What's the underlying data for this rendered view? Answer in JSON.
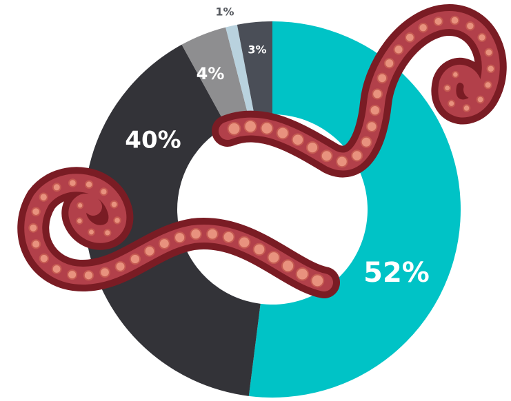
{
  "chart_data": {
    "type": "donut",
    "values": [
      52,
      40,
      4,
      1,
      3
    ],
    "value_labels": [
      "52%",
      "40%",
      "4%",
      "1%",
      "3%"
    ],
    "colors": [
      "#00c3c6",
      "#333338",
      "#8e8e90",
      "#b9d2de",
      "#4a4e57"
    ]
  }
}
